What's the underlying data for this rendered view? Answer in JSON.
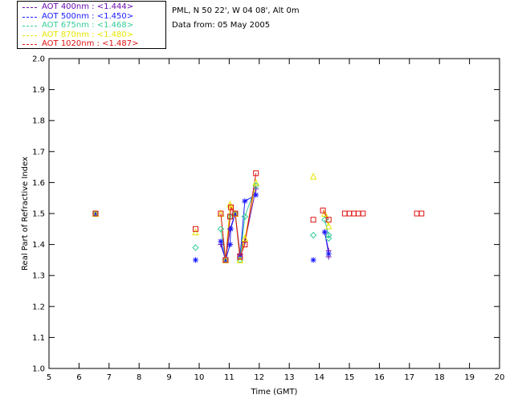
{
  "header": {
    "location": "PML, N 50 22', W 04 08', Alt 0m",
    "date_line": "Data from: 05 May 2005"
  },
  "chart_data": {
    "type": "scatter",
    "title": "",
    "xlabel": "Time (GMT)",
    "ylabel": "Real Part of Refractive Index",
    "xlim": [
      5,
      20
    ],
    "ylim": [
      1.0,
      2.0
    ],
    "x_ticks": [
      "5",
      "6",
      "7",
      "8",
      "9",
      "10",
      "11",
      "12",
      "13",
      "14",
      "15",
      "16",
      "17",
      "18",
      "19",
      "20"
    ],
    "y_ticks": [
      "1.0",
      "1.1",
      "1.2",
      "1.3",
      "1.4",
      "1.5",
      "1.6",
      "1.7",
      "1.8",
      "1.9",
      "2.0"
    ],
    "grid": false,
    "legend_position": "top-left",
    "series": [
      {
        "name": "AOT  400nm : <1.444>",
        "color": "#6a0dad",
        "marker": "plus",
        "x": [
          6.55,
          10.72,
          10.88,
          11.03,
          11.2,
          11.36,
          11.52,
          11.89,
          14.18,
          14.31,
          14.31
        ],
        "y": [
          1.5,
          1.4,
          1.35,
          1.45,
          1.5,
          1.37,
          1.41,
          1.58,
          1.44,
          1.38,
          1.36
        ]
      },
      {
        "name": "AOT  500nm : <1.450>",
        "color": "#1a1aff",
        "marker": "asterisk",
        "x": [
          6.55,
          9.88,
          10.72,
          10.88,
          11.03,
          11.05,
          11.2,
          11.36,
          11.52,
          11.89,
          13.8,
          14.18,
          14.31
        ],
        "y": [
          1.5,
          1.35,
          1.41,
          1.35,
          1.4,
          1.45,
          1.5,
          1.36,
          1.54,
          1.56,
          1.35,
          1.44,
          1.37
        ]
      },
      {
        "name": "AOT  675nm : <1.468>",
        "color": "#33cc99",
        "marker": "diamond",
        "x": [
          6.55,
          9.88,
          10.72,
          10.88,
          11.03,
          11.2,
          11.36,
          11.52,
          11.89,
          13.8,
          14.18,
          14.31,
          14.31
        ],
        "y": [
          1.5,
          1.39,
          1.45,
          1.35,
          1.49,
          1.5,
          1.35,
          1.49,
          1.59,
          1.43,
          1.48,
          1.43,
          1.42
        ]
      },
      {
        "name": "AOT  870nm : <1.480>",
        "color": "#e6e600",
        "marker": "triangle",
        "x": [
          6.55,
          9.88,
          10.72,
          10.88,
          11.03,
          11.2,
          11.36,
          11.52,
          11.89,
          13.8,
          14.18,
          14.31
        ],
        "y": [
          1.5,
          1.44,
          1.5,
          1.35,
          1.53,
          1.5,
          1.35,
          1.42,
          1.6,
          1.62,
          1.5,
          1.46
        ]
      },
      {
        "name": "AOT 1020nm : <1.487>",
        "color": "#dd1111",
        "marker": "square",
        "x": [
          6.55,
          9.88,
          10.72,
          10.88,
          11.03,
          11.06,
          11.2,
          11.36,
          11.52,
          11.89,
          13.8,
          14.12,
          14.31,
          14.85,
          15.0,
          15.15,
          15.3,
          15.45,
          17.25,
          17.4
        ],
        "y": [
          1.5,
          1.45,
          1.5,
          1.35,
          1.49,
          1.52,
          1.5,
          1.36,
          1.4,
          1.63,
          1.48,
          1.51,
          1.48,
          1.5,
          1.5,
          1.5,
          1.5,
          1.5,
          1.5,
          1.5
        ]
      }
    ],
    "connected_groups": [
      [
        10.5,
        12.0
      ],
      [
        14.0,
        14.5
      ]
    ]
  }
}
